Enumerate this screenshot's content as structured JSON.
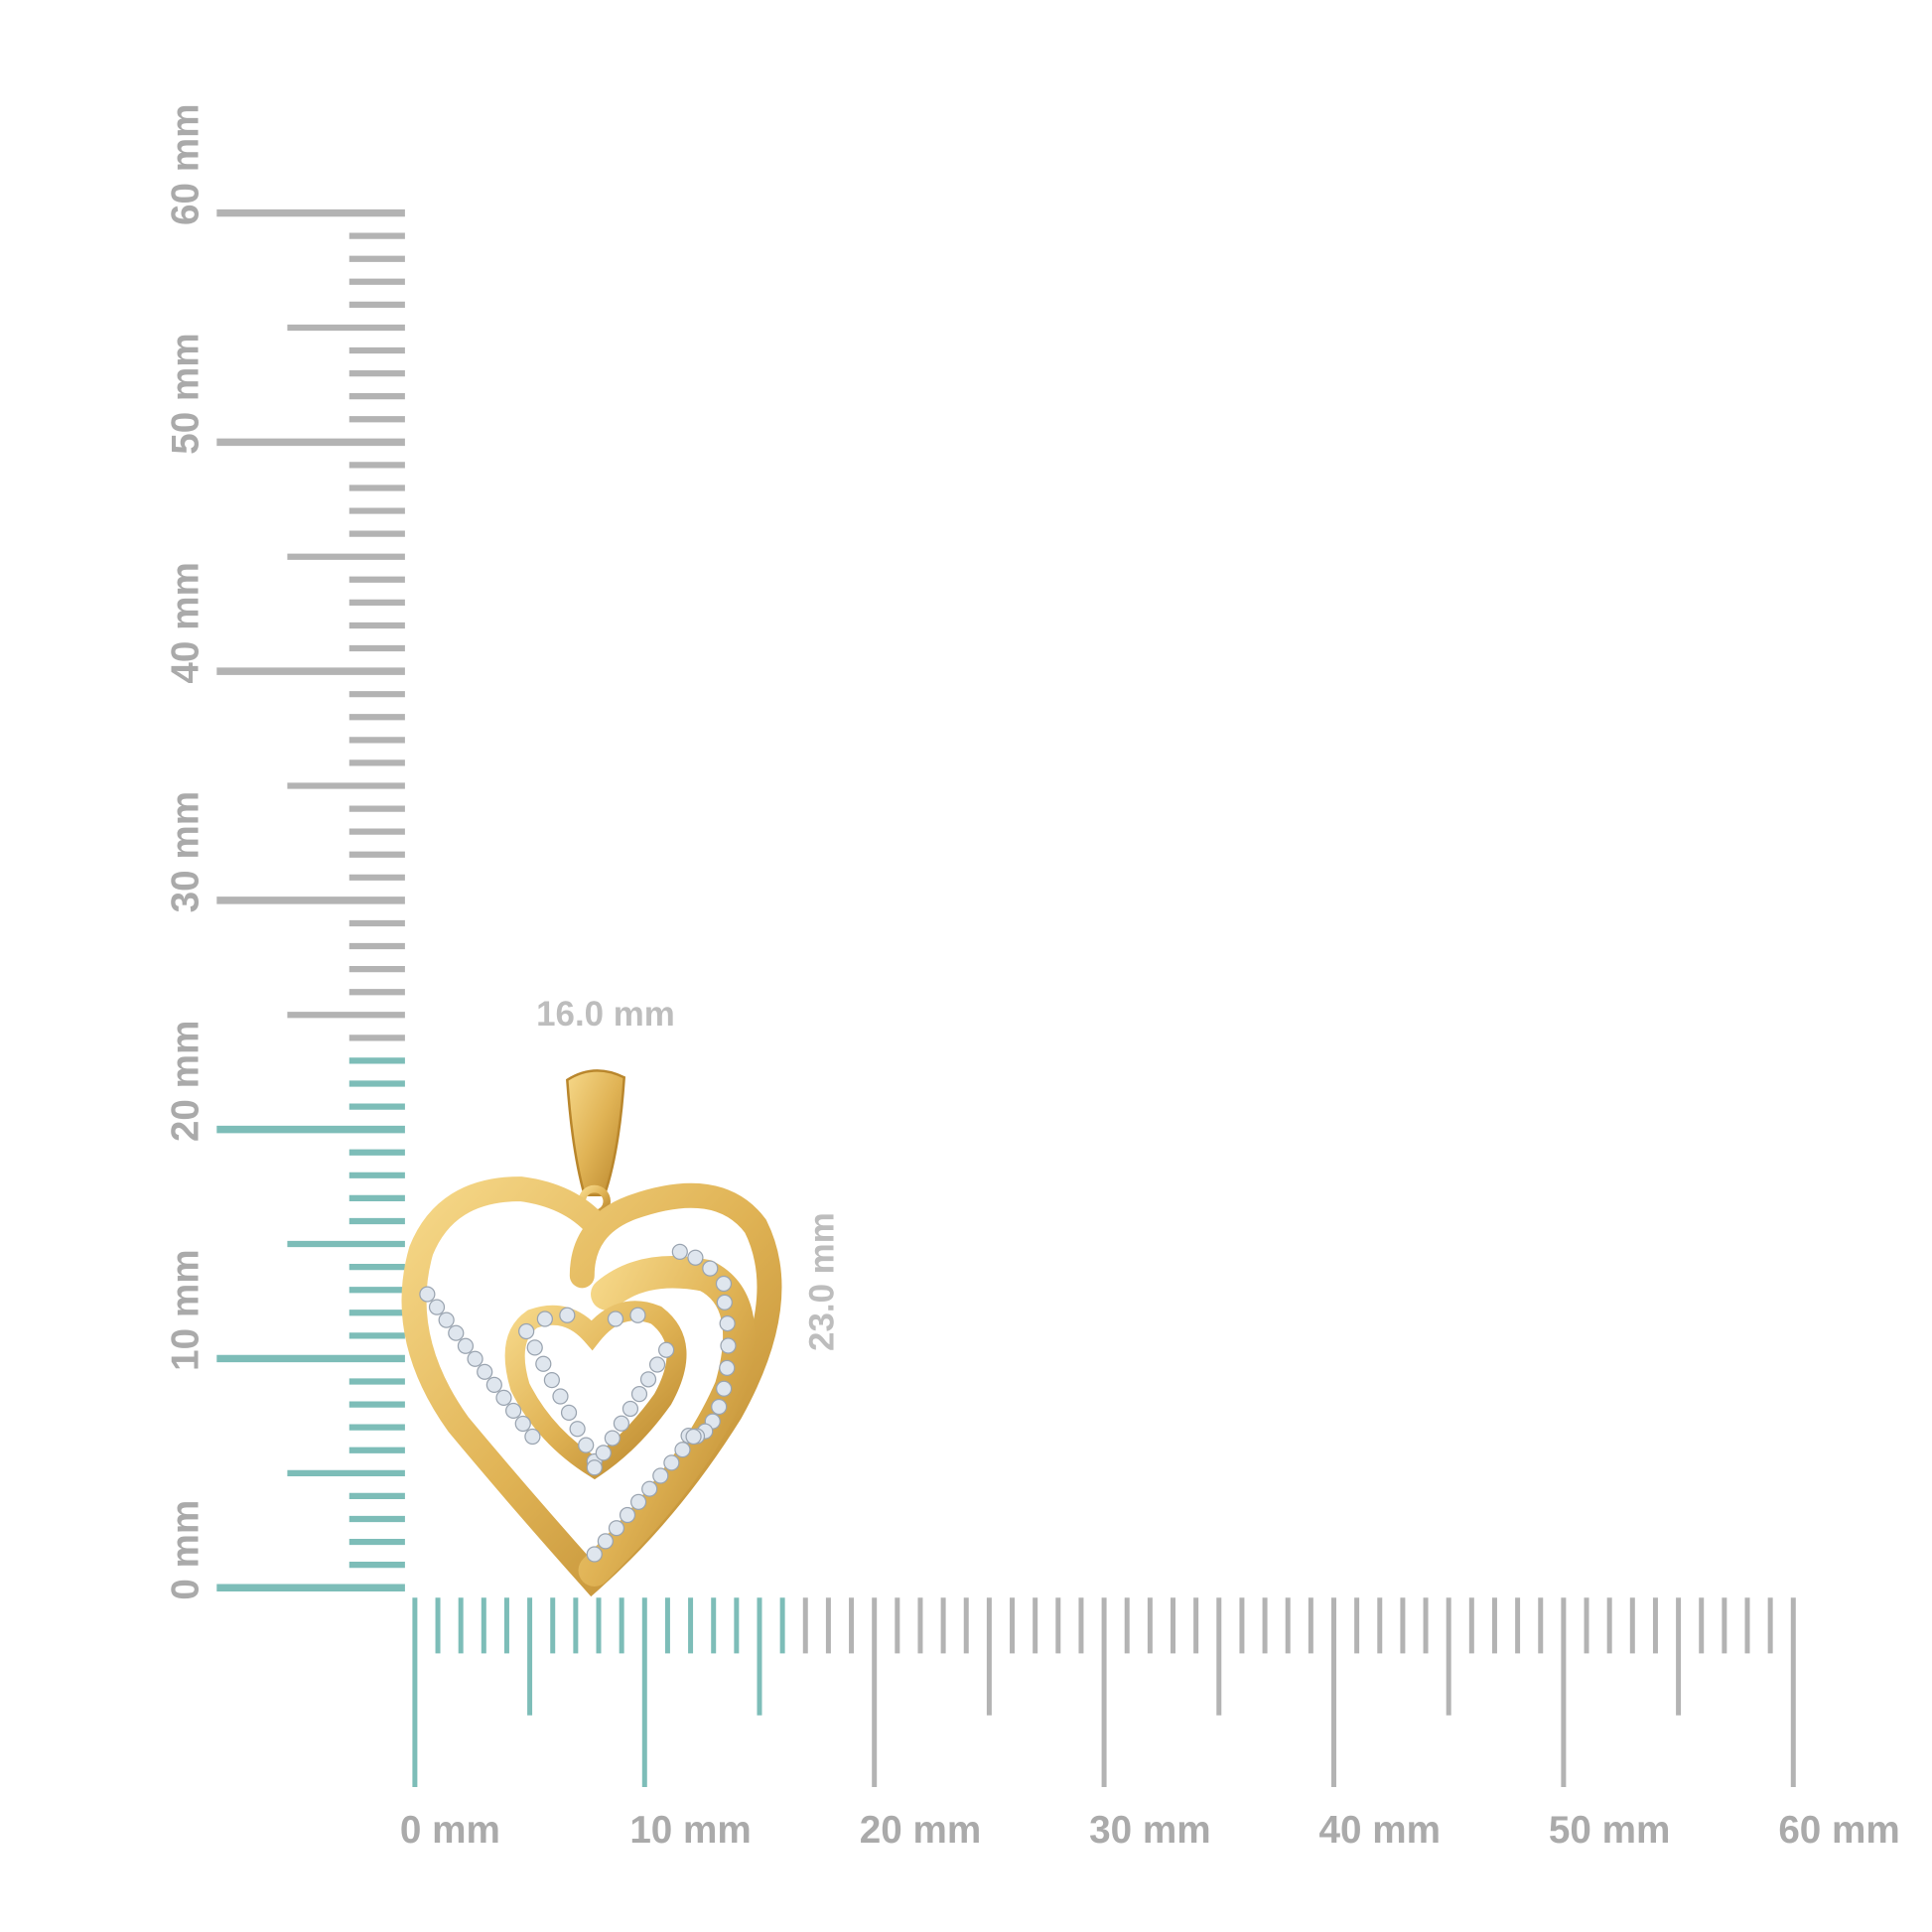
{
  "colors": {
    "highlight": "#7dbdb8",
    "ruler": "#b3b3b3",
    "gold": "#e0b355",
    "gold_dark": "#b9862c",
    "gold_light": "#f6d889",
    "stone": "#dfe6ee"
  },
  "vertical_ruler": {
    "min_mm": 0,
    "max_mm": 60,
    "highlight_to_mm": 23,
    "labels": [
      "0 mm",
      "10 mm",
      "20 mm",
      "30 mm",
      "40 mm",
      "50 mm",
      "60 mm"
    ]
  },
  "horizontal_ruler": {
    "min_mm": 0,
    "max_mm": 60,
    "highlight_to_mm": 16,
    "labels": [
      "0 mm",
      "10 mm",
      "20 mm",
      "30 mm",
      "40 mm",
      "50 mm",
      "60 mm"
    ]
  },
  "dimensions": {
    "width": "16.0 mm",
    "height": "23.0 mm"
  },
  "product": {
    "icon": "double-heart-diamond-pendant"
  }
}
